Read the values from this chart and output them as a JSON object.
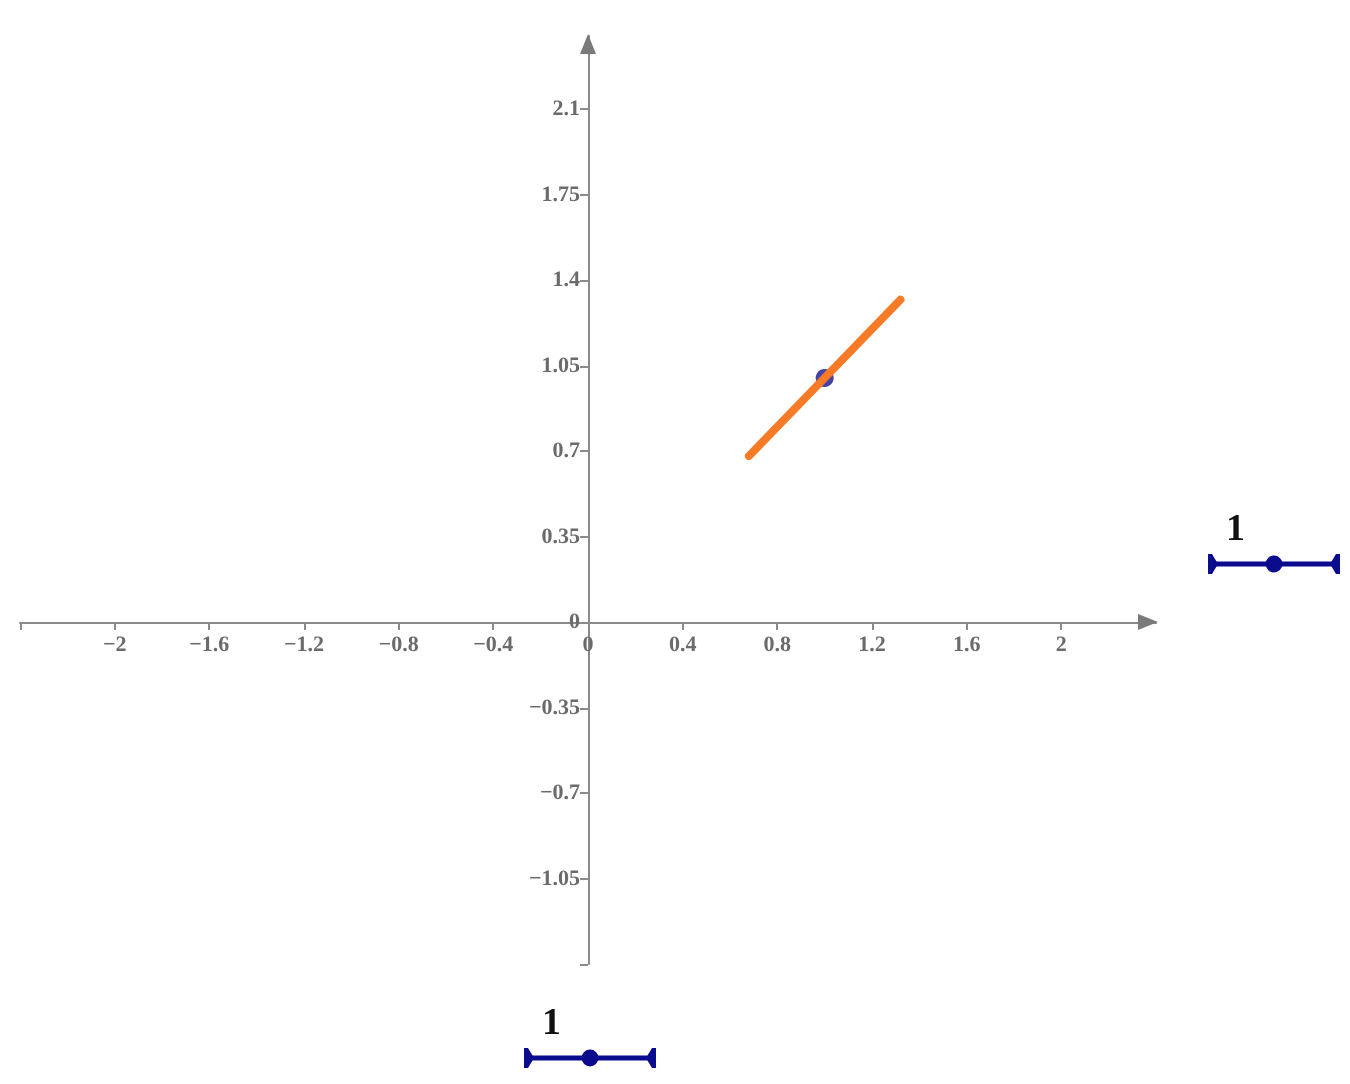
{
  "chart_data": {
    "type": "line",
    "xlim": [
      -2.4,
      2.4
    ],
    "ylim": [
      -1.4,
      2.4
    ],
    "xticks": [
      {
        "value": -2.4,
        "label": null
      },
      {
        "value": -2,
        "label": "−2"
      },
      {
        "value": -1.6,
        "label": "−1.6"
      },
      {
        "value": -1.2,
        "label": "−1.2"
      },
      {
        "value": -0.8,
        "label": "−0.8"
      },
      {
        "value": -0.4,
        "label": "−0.4"
      },
      0,
      0.4,
      0.8,
      1.2,
      1.6,
      2
    ],
    "yticks": [
      {
        "value": -1.4,
        "label": null
      },
      {
        "value": -1.05,
        "label": "−1.05"
      },
      {
        "value": -0.7,
        "label": "−0.7"
      },
      {
        "value": -0.35,
        "label": "−0.35"
      },
      0,
      0.35,
      0.7,
      1.05,
      1.4,
      1.75,
      2.1
    ],
    "grid": false,
    "series": [
      {
        "type": "scatter",
        "color": "#14148c",
        "marker": "circle",
        "x": [
          1
        ],
        "values": [
          1
        ]
      },
      {
        "color": "#f77b26",
        "marker": "none",
        "line_style": "solid",
        "x": [
          0.68,
          1.32
        ],
        "values": [
          0.68,
          1.32
        ]
      }
    ],
    "annotations": [
      "1",
      "1"
    ]
  }
}
